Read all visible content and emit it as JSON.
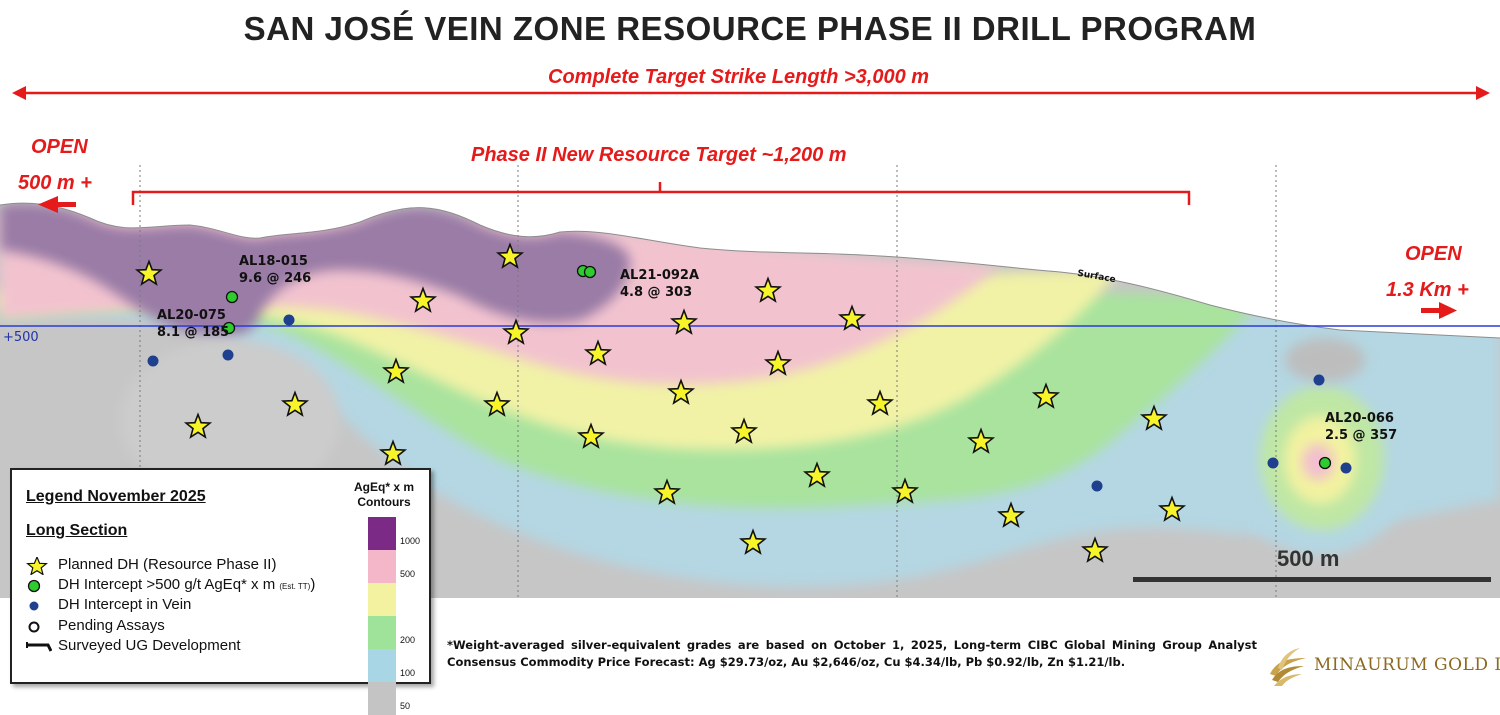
{
  "title": "SAN JOSÉ VEIN ZONE RESOURCE PHASE II DRILL PROGRAM",
  "strike_length_label": "Complete Target Strike Length >3,000 m",
  "phase_target_label": "Phase II New Resource Target ~1,200 m",
  "open_left": {
    "line1": "OPEN",
    "line2": "500 m +"
  },
  "open_right": {
    "line1": "OPEN",
    "line2": "1.3 Km +"
  },
  "surface_label": "Surface",
  "level_label": "+500",
  "scale_bar_label": "500 m",
  "drill_intercepts": [
    {
      "id": "AL18-015",
      "label": "AL18-015\n9.6 @ 246"
    },
    {
      "id": "AL20-075",
      "label": "AL20-075\n8.1 @ 185"
    },
    {
      "id": "AL21-092A",
      "label": "AL21-092A\n4.8 @ 303"
    },
    {
      "id": "AL20-066",
      "label": "AL20-066\n2.5 @ 357"
    }
  ],
  "legend": {
    "title": "Legend November 2025",
    "subtitle": "Long Section",
    "items": [
      {
        "symbol": "star",
        "text": "Planned DH (Resource Phase II)"
      },
      {
        "symbol": "green-dot",
        "text": "DH Intercept >500 g/t  AgEq* x m ",
        "note": "(Est. TT)",
        "suffix": ")"
      },
      {
        "symbol": "blue-dot",
        "text": "DH Intercept in Vein"
      },
      {
        "symbol": "open-circle",
        "text": "Pending Assays"
      },
      {
        "symbol": "ug-line",
        "text": "Surveyed UG Development"
      }
    ],
    "contours_title": "AgEq* x m\nContours",
    "contours": [
      {
        "value": "1000",
        "color": "#7b2a85"
      },
      {
        "value": "500",
        "color": "#f4b7c9"
      },
      {
        "value": "",
        "color": "#f2f2a0"
      },
      {
        "value": "200",
        "color": "#9fe39a"
      },
      {
        "value": "100",
        "color": "#a9d6e5"
      },
      {
        "value": "50",
        "color": "#c4c4c4"
      }
    ]
  },
  "footnote": "*Weight-averaged silver-equivalent grades are based on October 1, 2025, Long-term CIBC Global Mining Group Analyst Consensus Commodity Price Forecast: Ag $29.73/oz, Au $2,646/oz, Cu $4.34/lb, Pb $0.92/lb, Zn $1.21/lb.",
  "logo_text": "MINAURUM GOLD INC",
  "colors": {
    "accent_red": "#e51a1a",
    "level_line": "#2b3bd6",
    "star_fill": "#f7f52a",
    "intercept_green": "#2ecc2e",
    "vein_blue": "#1f3f8f"
  }
}
